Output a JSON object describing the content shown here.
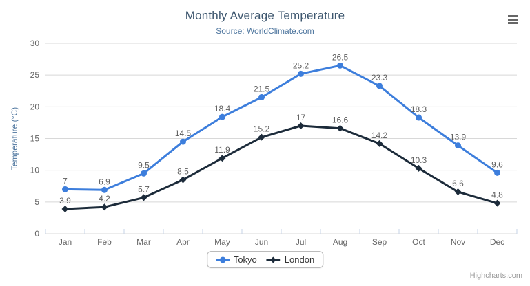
{
  "chart_data": {
    "type": "line",
    "title": "Monthly Average Temperature",
    "subtitle": "Source: WorldClimate.com",
    "categories": [
      "Jan",
      "Feb",
      "Mar",
      "Apr",
      "May",
      "Jun",
      "Jul",
      "Aug",
      "Sep",
      "Oct",
      "Nov",
      "Dec"
    ],
    "series": [
      {
        "name": "Tokyo",
        "color": "#3D7EDC",
        "marker": "circle",
        "values": [
          7,
          6.9,
          9.5,
          14.5,
          18.4,
          21.5,
          25.2,
          26.5,
          23.3,
          18.3,
          13.9,
          9.6
        ]
      },
      {
        "name": "London",
        "color": "#1C2B3A",
        "marker": "diamond",
        "values": [
          3.9,
          4.2,
          5.7,
          8.5,
          11.9,
          15.2,
          17,
          16.6,
          14.2,
          10.3,
          6.6,
          4.8
        ]
      }
    ],
    "xlabel": "",
    "ylabel": "Temperature (°C)",
    "ylim": [
      0,
      30
    ],
    "y_ticks": [
      0,
      5,
      10,
      15,
      20,
      25,
      30
    ],
    "grid": true,
    "data_labels": true,
    "legend_position": "bottom-center"
  },
  "credits": {
    "label": "Highcharts.com"
  },
  "colors": {
    "title": "#3E576F",
    "subtitle": "#4D759E",
    "axis_title": "#4D759E",
    "axis_labels": "#666666",
    "data_labels": "#5E5E5E",
    "grid_line": "#D8D8D8",
    "axis_line": "#C6D3E7",
    "legend_text": "#333333",
    "legend_border": "#BBBBBB",
    "credits": "#999999",
    "menu_icon": "#666666",
    "background": "#FFFFFF"
  }
}
